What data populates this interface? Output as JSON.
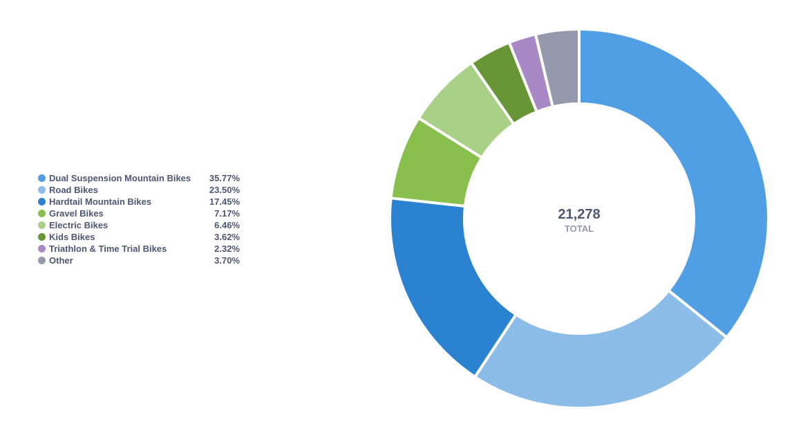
{
  "chart_data": {
    "type": "pie",
    "variant": "donut",
    "legend_position": "left",
    "total": {
      "value": "21,278",
      "label": "TOTAL"
    },
    "series": [
      {
        "name": "Dual Suspension Mountain Bikes",
        "value": 35.77,
        "display": "35.77%",
        "color": "#509ee3"
      },
      {
        "name": "Road Bikes",
        "value": 23.5,
        "display": "23.50%",
        "color": "#8cbde9"
      },
      {
        "name": "Hardtail Mountain Bikes",
        "value": 17.45,
        "display": "17.45%",
        "color": "#2a82d0"
      },
      {
        "name": "Gravel Bikes",
        "value": 7.17,
        "display": "7.17%",
        "color": "#88bf4d"
      },
      {
        "name": "Electric Bikes",
        "value": 6.46,
        "display": "6.46%",
        "color": "#a8d187"
      },
      {
        "name": "Kids Bikes",
        "value": 3.62,
        "display": "3.62%",
        "color": "#689636"
      },
      {
        "name": "Triathlon & Time Trial Bikes",
        "value": 2.32,
        "display": "2.32%",
        "color": "#a989c5"
      },
      {
        "name": "Other",
        "value": 3.7,
        "display": "3.70%",
        "color": "#949aab"
      }
    ]
  }
}
